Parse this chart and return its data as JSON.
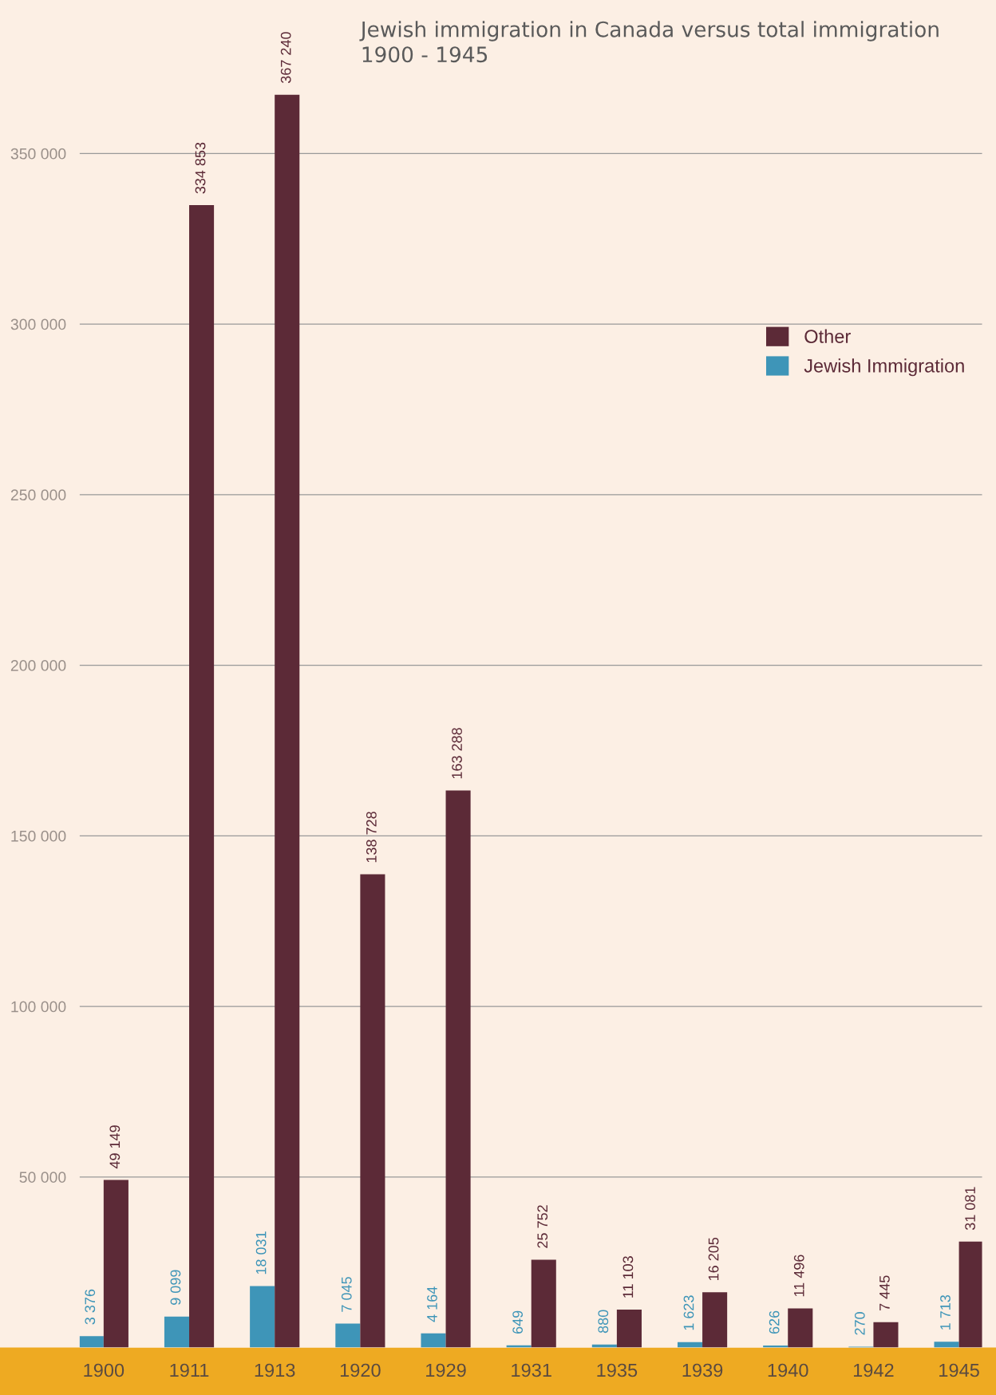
{
  "chart_data": {
    "type": "bar",
    "title": "Jewish immigration in Canada versus total immigration\n1900 - 1945",
    "categories": [
      "1900",
      "1911",
      "1913",
      "1920",
      "1929",
      "1931",
      "1935",
      "1939",
      "1940",
      "1942",
      "1945"
    ],
    "series": [
      {
        "name": "Jewish Immigration",
        "color": "#3e95b8",
        "values": [
          3376,
          9099,
          18031,
          7045,
          4164,
          649,
          880,
          1623,
          626,
          270,
          1713
        ],
        "value_labels": [
          "3 376",
          "9 099",
          "18 031",
          "7 045",
          "4 164",
          "649",
          "880",
          "1 623",
          "626",
          "270",
          "1 713"
        ]
      },
      {
        "name": "Other",
        "color": "#5c2a37",
        "values": [
          49149,
          334853,
          367240,
          138728,
          163288,
          25752,
          11103,
          16205,
          11496,
          7445,
          31081
        ],
        "value_labels": [
          "49 149",
          "334 853",
          "367 240",
          "138 728",
          "163 288",
          "25 752",
          "11 103",
          "16 205",
          "11 496",
          "7 445",
          "31 081"
        ]
      }
    ],
    "ylim": [
      0,
      395000
    ],
    "yticks": [
      {
        "value": 50000,
        "label": "50 000"
      },
      {
        "value": 100000,
        "label": "100 000"
      },
      {
        "value": 150000,
        "label": "150 000"
      },
      {
        "value": 200000,
        "label": "200 000"
      },
      {
        "value": 250000,
        "label": "250 000"
      },
      {
        "value": 300000,
        "label": "300 000"
      },
      {
        "value": 350000,
        "label": "350 000"
      }
    ],
    "grid": "y",
    "legend": "top right"
  }
}
